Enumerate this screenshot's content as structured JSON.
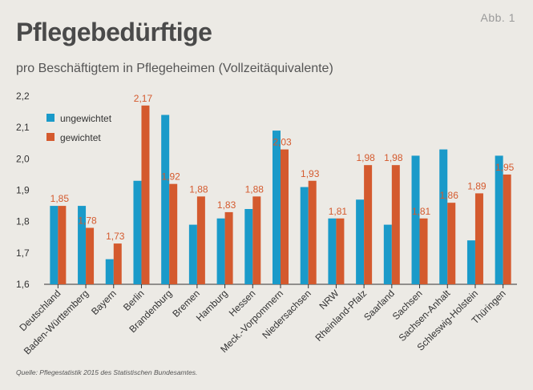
{
  "figure_label": "Abb. 1",
  "chart_data": {
    "type": "bar",
    "title": "Pflegebedürftige",
    "subtitle": "pro Beschäftigtem in Pflegeheimen (Vollzeitäquivalente)",
    "source": "Quelle: Pflegestatistik 2015 des Statistischen Bundesamtes.",
    "ylim": [
      1.6,
      2.2
    ],
    "yticks": [
      "1,6",
      "1,7",
      "1,8",
      "1,9",
      "2,0",
      "2,1",
      "2,2"
    ],
    "ytick_values": [
      1.6,
      1.7,
      1.8,
      1.9,
      2.0,
      2.1,
      2.2
    ],
    "categories": [
      "Deutschland",
      "Baden-Württemberg",
      "Bayern",
      "Berlin",
      "Brandenburg",
      "Bremen",
      "Hamburg",
      "Hessen",
      "Meck.-Vorpommern",
      "Niedersachsen",
      "NRW",
      "Rheinland-Pfalz",
      "Saarland",
      "Sachsen",
      "Sachsen-Anhalt",
      "Schleswig-Holstein",
      "Thüringen"
    ],
    "series": [
      {
        "name": "ungewichtet",
        "color": "#1a9ac9",
        "values": [
          1.85,
          1.85,
          1.68,
          1.93,
          2.14,
          1.79,
          1.81,
          1.84,
          2.09,
          1.91,
          1.81,
          1.87,
          1.79,
          2.01,
          2.03,
          1.74,
          2.01
        ]
      },
      {
        "name": "gewichtet",
        "color": "#d45a2e",
        "values": [
          1.85,
          1.78,
          1.73,
          2.17,
          1.92,
          1.88,
          1.83,
          1.88,
          2.03,
          1.93,
          1.81,
          1.98,
          1.98,
          1.81,
          1.86,
          1.89,
          1.95
        ]
      }
    ],
    "data_labels": [
      "1,85",
      "1,78",
      "1,73",
      "2,17",
      "1,92",
      "1,88",
      "1,83",
      "1,88",
      "2,03",
      "1,93",
      "1,81",
      "1,98",
      "1,98",
      "1,81",
      "1,86",
      "1,89",
      "1,95"
    ],
    "legend": [
      "ungewichtet",
      "gewichtet"
    ],
    "legend_position": "top-left",
    "grid": false
  }
}
